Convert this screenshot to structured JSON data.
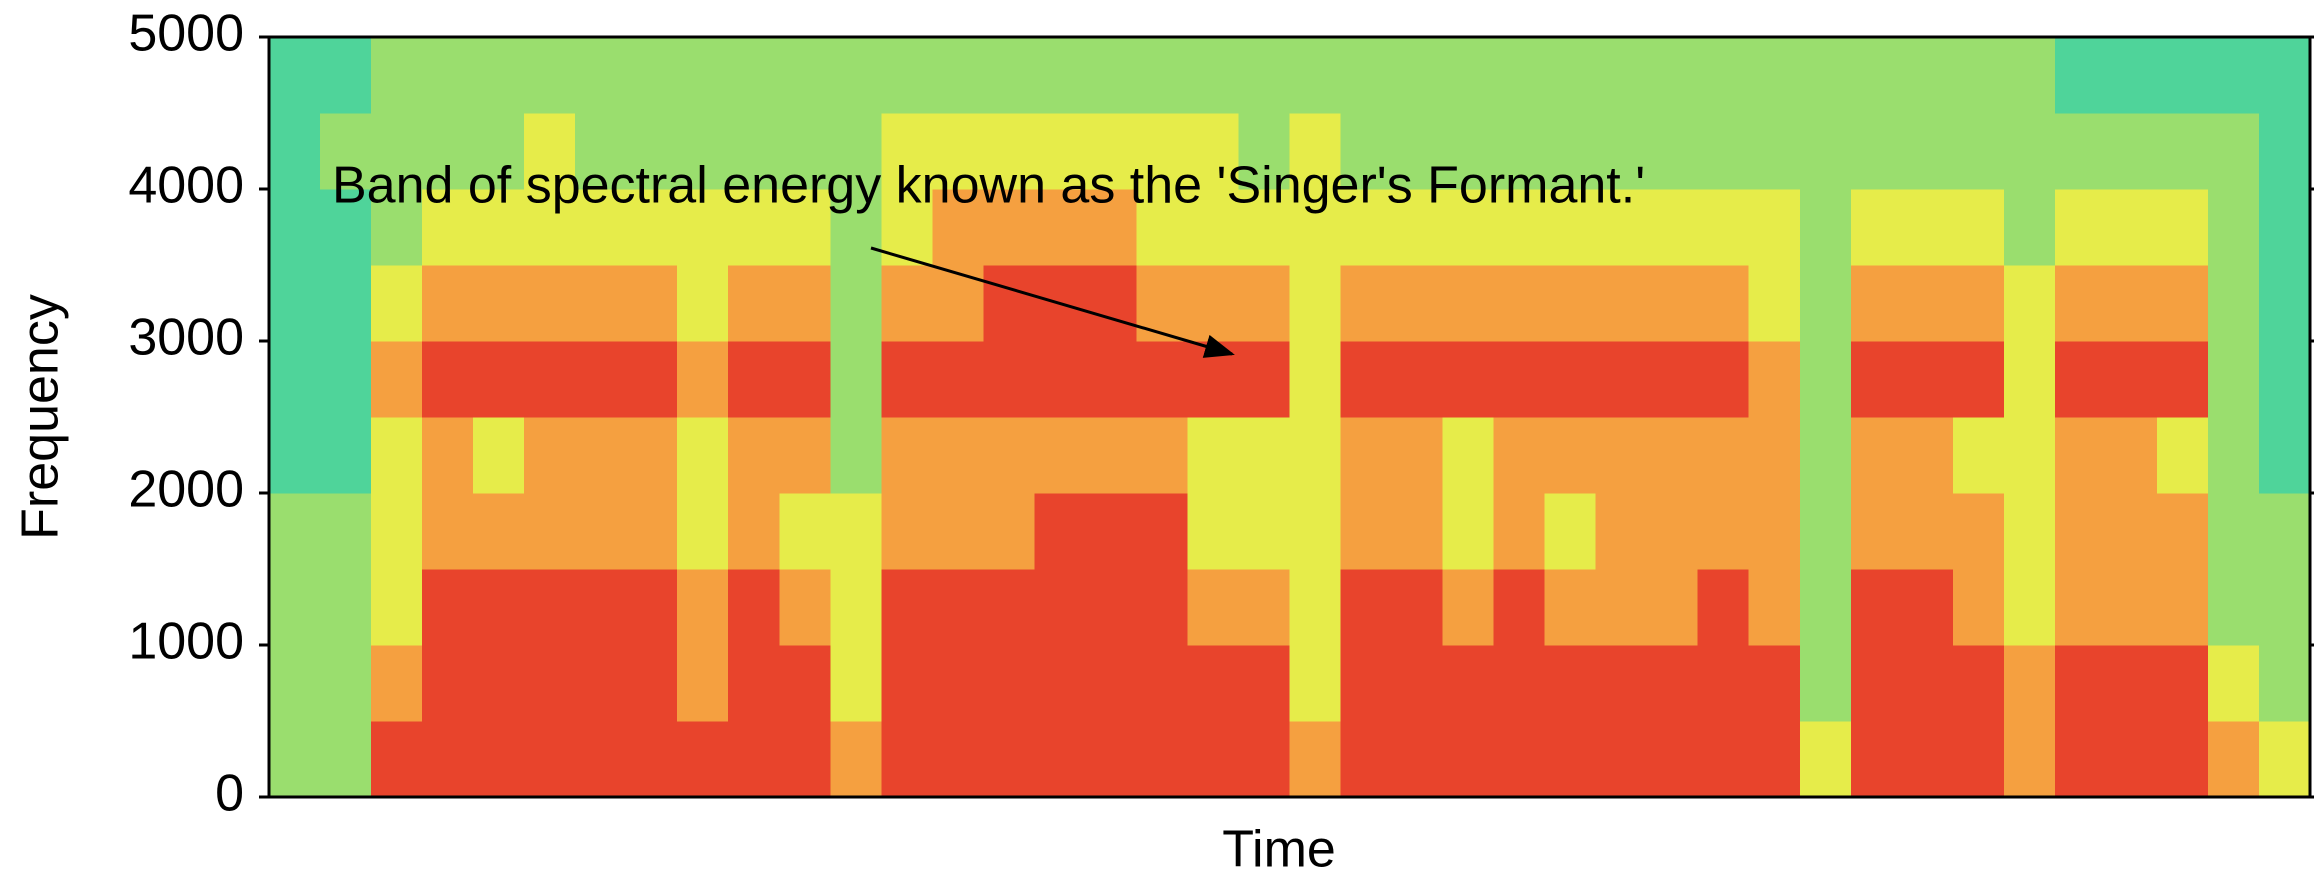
{
  "chart_data": {
    "type": "spectrogram",
    "xlabel": "Time",
    "ylabel": "Frequency",
    "annotation": "Band of spectral energy known as the 'Singer's Formant.'",
    "ylim": [
      0,
      5000
    ],
    "yticks": [
      0,
      1000,
      2000,
      3000,
      4000,
      5000
    ],
    "colors": [
      "#4fd49a",
      "#9ade6e",
      "#e6ec4a",
      "#f5a040",
      "#e8442c"
    ],
    "values": [
      [
        1,
        1,
        1,
        1,
        0,
        0,
        0,
        0,
        0,
        0
      ],
      [
        1,
        1,
        1,
        1,
        0,
        0,
        0,
        0,
        1,
        0
      ],
      [
        4,
        3,
        2,
        2,
        2,
        3,
        2,
        1,
        1,
        1
      ],
      [
        4,
        4,
        4,
        3,
        3,
        4,
        3,
        2,
        1,
        1
      ],
      [
        4,
        4,
        4,
        3,
        2,
        4,
        3,
        2,
        1,
        1
      ],
      [
        4,
        4,
        4,
        3,
        3,
        4,
        3,
        2,
        2,
        1
      ],
      [
        4,
        4,
        4,
        3,
        3,
        4,
        3,
        2,
        1,
        1
      ],
      [
        4,
        4,
        4,
        3,
        3,
        4,
        3,
        2,
        1,
        1
      ],
      [
        4,
        3,
        3,
        2,
        2,
        3,
        2,
        2,
        1,
        1
      ],
      [
        4,
        4,
        4,
        3,
        3,
        4,
        3,
        2,
        1,
        1
      ],
      [
        4,
        4,
        3,
        2,
        3,
        4,
        3,
        2,
        1,
        1
      ],
      [
        3,
        2,
        2,
        2,
        1,
        1,
        1,
        1,
        1,
        1
      ],
      [
        4,
        4,
        4,
        3,
        3,
        4,
        3,
        2,
        2,
        1
      ],
      [
        4,
        4,
        4,
        3,
        3,
        4,
        3,
        3,
        2,
        1
      ],
      [
        4,
        4,
        4,
        3,
        3,
        4,
        4,
        3,
        2,
        1
      ],
      [
        4,
        4,
        4,
        4,
        3,
        4,
        4,
        3,
        2,
        1
      ],
      [
        4,
        4,
        4,
        4,
        3,
        4,
        4,
        3,
        2,
        1
      ],
      [
        4,
        4,
        4,
        4,
        3,
        4,
        3,
        2,
        2,
        1
      ],
      [
        4,
        4,
        3,
        2,
        2,
        4,
        3,
        2,
        2,
        1
      ],
      [
        4,
        4,
        3,
        2,
        2,
        4,
        3,
        2,
        1,
        1
      ],
      [
        3,
        2,
        2,
        2,
        2,
        2,
        2,
        2,
        2,
        1
      ],
      [
        4,
        4,
        4,
        3,
        3,
        4,
        3,
        2,
        1,
        1
      ],
      [
        4,
        4,
        4,
        3,
        3,
        4,
        3,
        2,
        1,
        1
      ],
      [
        4,
        4,
        3,
        2,
        2,
        4,
        3,
        2,
        1,
        1
      ],
      [
        4,
        4,
        4,
        3,
        3,
        4,
        3,
        2,
        1,
        1
      ],
      [
        4,
        4,
        3,
        2,
        3,
        4,
        3,
        2,
        1,
        1
      ],
      [
        4,
        4,
        3,
        3,
        3,
        4,
        3,
        2,
        1,
        1
      ],
      [
        4,
        4,
        3,
        3,
        3,
        4,
        3,
        2,
        1,
        1
      ],
      [
        4,
        4,
        4,
        3,
        3,
        4,
        3,
        2,
        1,
        1
      ],
      [
        4,
        4,
        3,
        3,
        3,
        3,
        2,
        2,
        1,
        1
      ],
      [
        2,
        1,
        1,
        1,
        1,
        1,
        1,
        1,
        1,
        1
      ],
      [
        4,
        4,
        4,
        3,
        3,
        4,
        3,
        2,
        1,
        1
      ],
      [
        4,
        4,
        4,
        3,
        3,
        4,
        3,
        2,
        1,
        1
      ],
      [
        4,
        4,
        3,
        3,
        2,
        4,
        3,
        2,
        1,
        1
      ],
      [
        3,
        3,
        2,
        2,
        2,
        2,
        2,
        1,
        1,
        1
      ],
      [
        4,
        4,
        3,
        3,
        3,
        4,
        3,
        2,
        1,
        0
      ],
      [
        4,
        4,
        3,
        3,
        3,
        4,
        3,
        2,
        1,
        0
      ],
      [
        4,
        4,
        3,
        3,
        2,
        4,
        3,
        2,
        1,
        0
      ],
      [
        3,
        2,
        1,
        1,
        1,
        1,
        1,
        1,
        1,
        0
      ],
      [
        2,
        1,
        1,
        1,
        0,
        0,
        0,
        0,
        0,
        0
      ]
    ]
  }
}
